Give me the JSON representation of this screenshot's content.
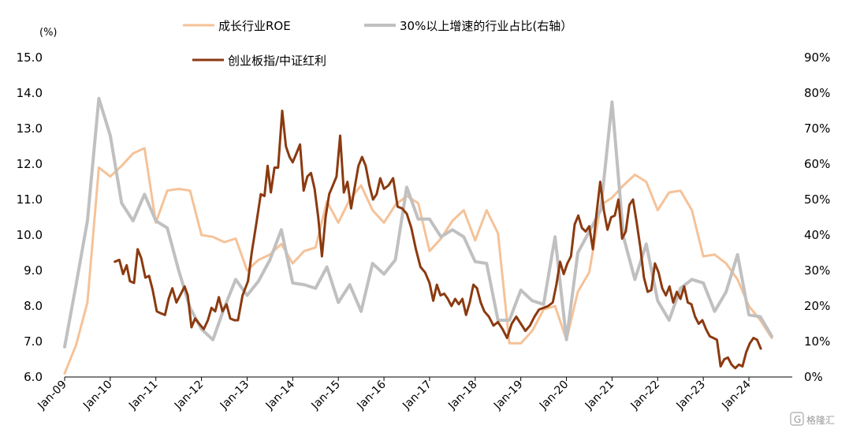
{
  "chart_data": {
    "type": "line",
    "y_unit_label": "(%)",
    "x_labels": [
      "Jan-09",
      "Jan-10",
      "Jan-11",
      "Jan-12",
      "Jan-13",
      "Jan-14",
      "Jan-15",
      "Jan-16",
      "Jan-17",
      "Jan-18",
      "Jan-19",
      "Jan-20",
      "Jan-21",
      "Jan-22",
      "Jan-23",
      "Jan-24"
    ],
    "x_range": [
      2009.0,
      2024.95
    ],
    "ylim_left": [
      6.0,
      15.0
    ],
    "ylim_right": [
      0,
      90
    ],
    "yticks_left": [
      "6.0",
      "7.0",
      "8.0",
      "9.0",
      "10.0",
      "11.0",
      "12.0",
      "13.0",
      "14.0",
      "15.0"
    ],
    "yticks_right": [
      "0%",
      "10%",
      "20%",
      "30%",
      "40%",
      "50%",
      "60%",
      "70%",
      "80%",
      "90%"
    ],
    "legend": [
      {
        "name": "成长行业ROE",
        "color": "#F5C298"
      },
      {
        "name": "30%以上增速的行业占比(右轴）",
        "color": "#C0C0C0"
      },
      {
        "name": "创业板指/中证红利",
        "color": "#8B3A10"
      }
    ],
    "series": [
      {
        "name": "成长行业ROE",
        "axis": "left",
        "color": "#F5C298",
        "width": 3,
        "points": [
          [
            2009.0,
            6.1
          ],
          [
            2009.25,
            6.9
          ],
          [
            2009.5,
            8.1
          ],
          [
            2009.75,
            11.9
          ],
          [
            2010.0,
            11.65
          ],
          [
            2010.25,
            11.95
          ],
          [
            2010.5,
            12.3
          ],
          [
            2010.75,
            12.45
          ],
          [
            2011.0,
            10.35
          ],
          [
            2011.25,
            11.25
          ],
          [
            2011.5,
            11.3
          ],
          [
            2011.75,
            11.25
          ],
          [
            2012.0,
            10.0
          ],
          [
            2012.25,
            9.95
          ],
          [
            2012.5,
            9.8
          ],
          [
            2012.75,
            9.9
          ],
          [
            2013.0,
            9.0
          ],
          [
            2013.25,
            9.3
          ],
          [
            2013.5,
            9.45
          ],
          [
            2013.75,
            9.75
          ],
          [
            2014.0,
            9.2
          ],
          [
            2014.25,
            9.55
          ],
          [
            2014.5,
            9.65
          ],
          [
            2014.75,
            10.95
          ],
          [
            2015.0,
            10.35
          ],
          [
            2015.25,
            11.0
          ],
          [
            2015.5,
            11.4
          ],
          [
            2015.75,
            10.7
          ],
          [
            2016.0,
            10.35
          ],
          [
            2016.25,
            10.85
          ],
          [
            2016.5,
            11.1
          ],
          [
            2016.75,
            10.9
          ],
          [
            2017.0,
            9.55
          ],
          [
            2017.25,
            9.9
          ],
          [
            2017.5,
            10.4
          ],
          [
            2017.75,
            10.7
          ],
          [
            2018.0,
            9.85
          ],
          [
            2018.25,
            10.7
          ],
          [
            2018.5,
            10.05
          ],
          [
            2018.75,
            6.95
          ],
          [
            2019.0,
            6.95
          ],
          [
            2019.25,
            7.3
          ],
          [
            2019.5,
            7.9
          ],
          [
            2019.75,
            8.0
          ],
          [
            2020.0,
            7.05
          ],
          [
            2020.25,
            8.4
          ],
          [
            2020.5,
            8.95
          ],
          [
            2020.75,
            10.85
          ],
          [
            2021.0,
            11.05
          ],
          [
            2021.25,
            11.4
          ],
          [
            2021.5,
            11.7
          ],
          [
            2021.75,
            11.5
          ],
          [
            2022.0,
            10.7
          ],
          [
            2022.25,
            11.2
          ],
          [
            2022.5,
            11.25
          ],
          [
            2022.75,
            10.7
          ],
          [
            2023.0,
            9.4
          ],
          [
            2023.25,
            9.45
          ],
          [
            2023.5,
            9.2
          ],
          [
            2023.75,
            8.75
          ],
          [
            2024.0,
            8.0
          ],
          [
            2024.25,
            7.6
          ],
          [
            2024.5,
            7.1
          ]
        ]
      },
      {
        "name": "30%以上增速的行业占比(右轴）",
        "axis": "right",
        "color": "#C0C0C0",
        "width": 4,
        "points": [
          [
            2009.0,
            8.5
          ],
          [
            2009.25,
            26
          ],
          [
            2009.5,
            44
          ],
          [
            2009.75,
            78.5
          ],
          [
            2010.0,
            68
          ],
          [
            2010.25,
            49
          ],
          [
            2010.5,
            44
          ],
          [
            2010.75,
            51.5
          ],
          [
            2011.0,
            44
          ],
          [
            2011.25,
            42
          ],
          [
            2011.5,
            30
          ],
          [
            2011.75,
            19.5
          ],
          [
            2012.0,
            13.5
          ],
          [
            2012.25,
            10.5
          ],
          [
            2012.5,
            19.5
          ],
          [
            2012.75,
            27.5
          ],
          [
            2013.0,
            23
          ],
          [
            2013.25,
            27
          ],
          [
            2013.5,
            33
          ],
          [
            2013.75,
            41.5
          ],
          [
            2014.0,
            26.5
          ],
          [
            2014.25,
            26
          ],
          [
            2014.5,
            25
          ],
          [
            2014.75,
            31
          ],
          [
            2015.0,
            21
          ],
          [
            2015.25,
            26
          ],
          [
            2015.5,
            18.5
          ],
          [
            2015.75,
            32
          ],
          [
            2016.0,
            29
          ],
          [
            2016.25,
            33
          ],
          [
            2016.5,
            53.5
          ],
          [
            2016.75,
            44.5
          ],
          [
            2017.0,
            44.5
          ],
          [
            2017.25,
            39.5
          ],
          [
            2017.5,
            41.5
          ],
          [
            2017.75,
            39.5
          ],
          [
            2018.0,
            32.5
          ],
          [
            2018.25,
            32
          ],
          [
            2018.5,
            16
          ],
          [
            2018.75,
            16
          ],
          [
            2019.0,
            24.5
          ],
          [
            2019.25,
            21.5
          ],
          [
            2019.5,
            20.5
          ],
          [
            2019.75,
            39.5
          ],
          [
            2020.0,
            10.5
          ],
          [
            2020.25,
            35
          ],
          [
            2020.5,
            41
          ],
          [
            2020.75,
            47
          ],
          [
            2021.0,
            77.5
          ],
          [
            2021.25,
            39.5
          ],
          [
            2021.5,
            27.5
          ],
          [
            2021.75,
            37.5
          ],
          [
            2022.0,
            21.5
          ],
          [
            2022.25,
            16
          ],
          [
            2022.5,
            25
          ],
          [
            2022.75,
            27.5
          ],
          [
            2023.0,
            26.5
          ],
          [
            2023.25,
            18.5
          ],
          [
            2023.5,
            24
          ],
          [
            2023.75,
            34.5
          ],
          [
            2024.0,
            17.5
          ],
          [
            2024.25,
            17
          ],
          [
            2024.5,
            11.5
          ]
        ]
      },
      {
        "name": "创业板指/中证红利",
        "axis": "left",
        "color": "#8B3A10",
        "width": 3,
        "points": [
          [
            2010.1,
            9.25
          ],
          [
            2010.2,
            9.3
          ],
          [
            2010.28,
            8.9
          ],
          [
            2010.36,
            9.15
          ],
          [
            2010.43,
            8.7
          ],
          [
            2010.52,
            8.65
          ],
          [
            2010.6,
            9.6
          ],
          [
            2010.68,
            9.35
          ],
          [
            2010.77,
            8.8
          ],
          [
            2010.85,
            8.85
          ],
          [
            2010.93,
            8.45
          ],
          [
            2011.02,
            7.85
          ],
          [
            2011.1,
            7.8
          ],
          [
            2011.2,
            7.75
          ],
          [
            2011.28,
            8.2
          ],
          [
            2011.36,
            8.5
          ],
          [
            2011.45,
            8.1
          ],
          [
            2011.55,
            8.35
          ],
          [
            2011.63,
            8.55
          ],
          [
            2011.7,
            8.3
          ],
          [
            2011.78,
            7.4
          ],
          [
            2011.86,
            7.65
          ],
          [
            2011.95,
            7.5
          ],
          [
            2012.05,
            7.35
          ],
          [
            2012.14,
            7.6
          ],
          [
            2012.22,
            7.95
          ],
          [
            2012.3,
            7.85
          ],
          [
            2012.38,
            8.25
          ],
          [
            2012.46,
            7.85
          ],
          [
            2012.55,
            8.05
          ],
          [
            2012.63,
            7.65
          ],
          [
            2012.72,
            7.6
          ],
          [
            2012.8,
            7.6
          ],
          [
            2012.9,
            8.3
          ],
          [
            2013.02,
            8.7
          ],
          [
            2013.1,
            9.5
          ],
          [
            2013.2,
            10.3
          ],
          [
            2013.3,
            11.15
          ],
          [
            2013.38,
            11.1
          ],
          [
            2013.45,
            11.95
          ],
          [
            2013.52,
            11.2
          ],
          [
            2013.6,
            11.9
          ],
          [
            2013.68,
            11.9
          ],
          [
            2013.77,
            13.5
          ],
          [
            2013.85,
            12.5
          ],
          [
            2013.93,
            12.2
          ],
          [
            2014.0,
            12.05
          ],
          [
            2014.08,
            12.3
          ],
          [
            2014.16,
            12.55
          ],
          [
            2014.24,
            11.25
          ],
          [
            2014.32,
            11.65
          ],
          [
            2014.4,
            11.75
          ],
          [
            2014.48,
            11.3
          ],
          [
            2014.56,
            10.5
          ],
          [
            2014.64,
            9.4
          ],
          [
            2014.72,
            10.5
          ],
          [
            2014.8,
            11.15
          ],
          [
            2014.88,
            11.4
          ],
          [
            2014.96,
            11.65
          ],
          [
            2015.04,
            12.8
          ],
          [
            2015.12,
            11.2
          ],
          [
            2015.2,
            11.5
          ],
          [
            2015.28,
            10.75
          ],
          [
            2015.36,
            11.35
          ],
          [
            2015.44,
            11.95
          ],
          [
            2015.52,
            12.2
          ],
          [
            2015.6,
            11.95
          ],
          [
            2015.68,
            11.4
          ],
          [
            2015.76,
            11.0
          ],
          [
            2015.84,
            11.15
          ],
          [
            2015.92,
            11.6
          ],
          [
            2016.0,
            11.3
          ],
          [
            2016.1,
            11.4
          ],
          [
            2016.2,
            11.6
          ],
          [
            2016.3,
            10.8
          ],
          [
            2016.4,
            10.75
          ],
          [
            2016.5,
            10.6
          ],
          [
            2016.6,
            10.2
          ],
          [
            2016.7,
            9.6
          ],
          [
            2016.8,
            9.1
          ],
          [
            2016.9,
            8.95
          ],
          [
            2017.0,
            8.65
          ],
          [
            2017.08,
            8.15
          ],
          [
            2017.16,
            8.6
          ],
          [
            2017.24,
            8.3
          ],
          [
            2017.32,
            8.35
          ],
          [
            2017.4,
            8.2
          ],
          [
            2017.48,
            8.0
          ],
          [
            2017.56,
            8.2
          ],
          [
            2017.64,
            8.05
          ],
          [
            2017.72,
            8.2
          ],
          [
            2017.8,
            7.75
          ],
          [
            2017.88,
            8.1
          ],
          [
            2017.96,
            8.6
          ],
          [
            2018.04,
            8.5
          ],
          [
            2018.12,
            8.1
          ],
          [
            2018.2,
            7.85
          ],
          [
            2018.3,
            7.7
          ],
          [
            2018.4,
            7.45
          ],
          [
            2018.5,
            7.55
          ],
          [
            2018.6,
            7.35
          ],
          [
            2018.7,
            7.1
          ],
          [
            2018.8,
            7.5
          ],
          [
            2018.9,
            7.7
          ],
          [
            2019.0,
            7.5
          ],
          [
            2019.1,
            7.3
          ],
          [
            2019.2,
            7.45
          ],
          [
            2019.3,
            7.7
          ],
          [
            2019.4,
            7.9
          ],
          [
            2019.5,
            7.95
          ],
          [
            2019.6,
            8.0
          ],
          [
            2019.7,
            8.1
          ],
          [
            2019.78,
            8.6
          ],
          [
            2019.86,
            9.25
          ],
          [
            2019.94,
            8.9
          ],
          [
            2020.02,
            9.2
          ],
          [
            2020.1,
            9.4
          ],
          [
            2020.18,
            10.3
          ],
          [
            2020.26,
            10.55
          ],
          [
            2020.34,
            10.2
          ],
          [
            2020.42,
            10.1
          ],
          [
            2020.5,
            10.25
          ],
          [
            2020.58,
            9.6
          ],
          [
            2020.66,
            10.6
          ],
          [
            2020.74,
            11.5
          ],
          [
            2020.82,
            10.7
          ],
          [
            2020.9,
            10.15
          ],
          [
            2020.98,
            10.5
          ],
          [
            2021.06,
            10.55
          ],
          [
            2021.14,
            11.0
          ],
          [
            2021.22,
            9.9
          ],
          [
            2021.3,
            10.1
          ],
          [
            2021.38,
            10.85
          ],
          [
            2021.46,
            11.0
          ],
          [
            2021.54,
            10.35
          ],
          [
            2021.62,
            9.65
          ],
          [
            2021.7,
            8.8
          ],
          [
            2021.78,
            8.4
          ],
          [
            2021.86,
            8.45
          ],
          [
            2021.94,
            9.2
          ],
          [
            2022.02,
            8.95
          ],
          [
            2022.1,
            8.5
          ],
          [
            2022.18,
            8.3
          ],
          [
            2022.26,
            8.55
          ],
          [
            2022.34,
            8.1
          ],
          [
            2022.42,
            8.4
          ],
          [
            2022.5,
            8.2
          ],
          [
            2022.58,
            8.55
          ],
          [
            2022.66,
            8.1
          ],
          [
            2022.74,
            8.05
          ],
          [
            2022.82,
            7.7
          ],
          [
            2022.9,
            7.5
          ],
          [
            2022.98,
            7.6
          ],
          [
            2023.06,
            7.35
          ],
          [
            2023.14,
            7.15
          ],
          [
            2023.22,
            7.1
          ],
          [
            2023.3,
            7.05
          ],
          [
            2023.38,
            6.3
          ],
          [
            2023.46,
            6.5
          ],
          [
            2023.54,
            6.55
          ],
          [
            2023.62,
            6.35
          ],
          [
            2023.7,
            6.25
          ],
          [
            2023.78,
            6.35
          ],
          [
            2023.86,
            6.3
          ],
          [
            2023.94,
            6.7
          ],
          [
            2024.02,
            6.95
          ],
          [
            2024.1,
            7.1
          ],
          [
            2024.18,
            7.05
          ],
          [
            2024.26,
            6.8
          ]
        ]
      }
    ]
  },
  "watermark": "格隆汇"
}
